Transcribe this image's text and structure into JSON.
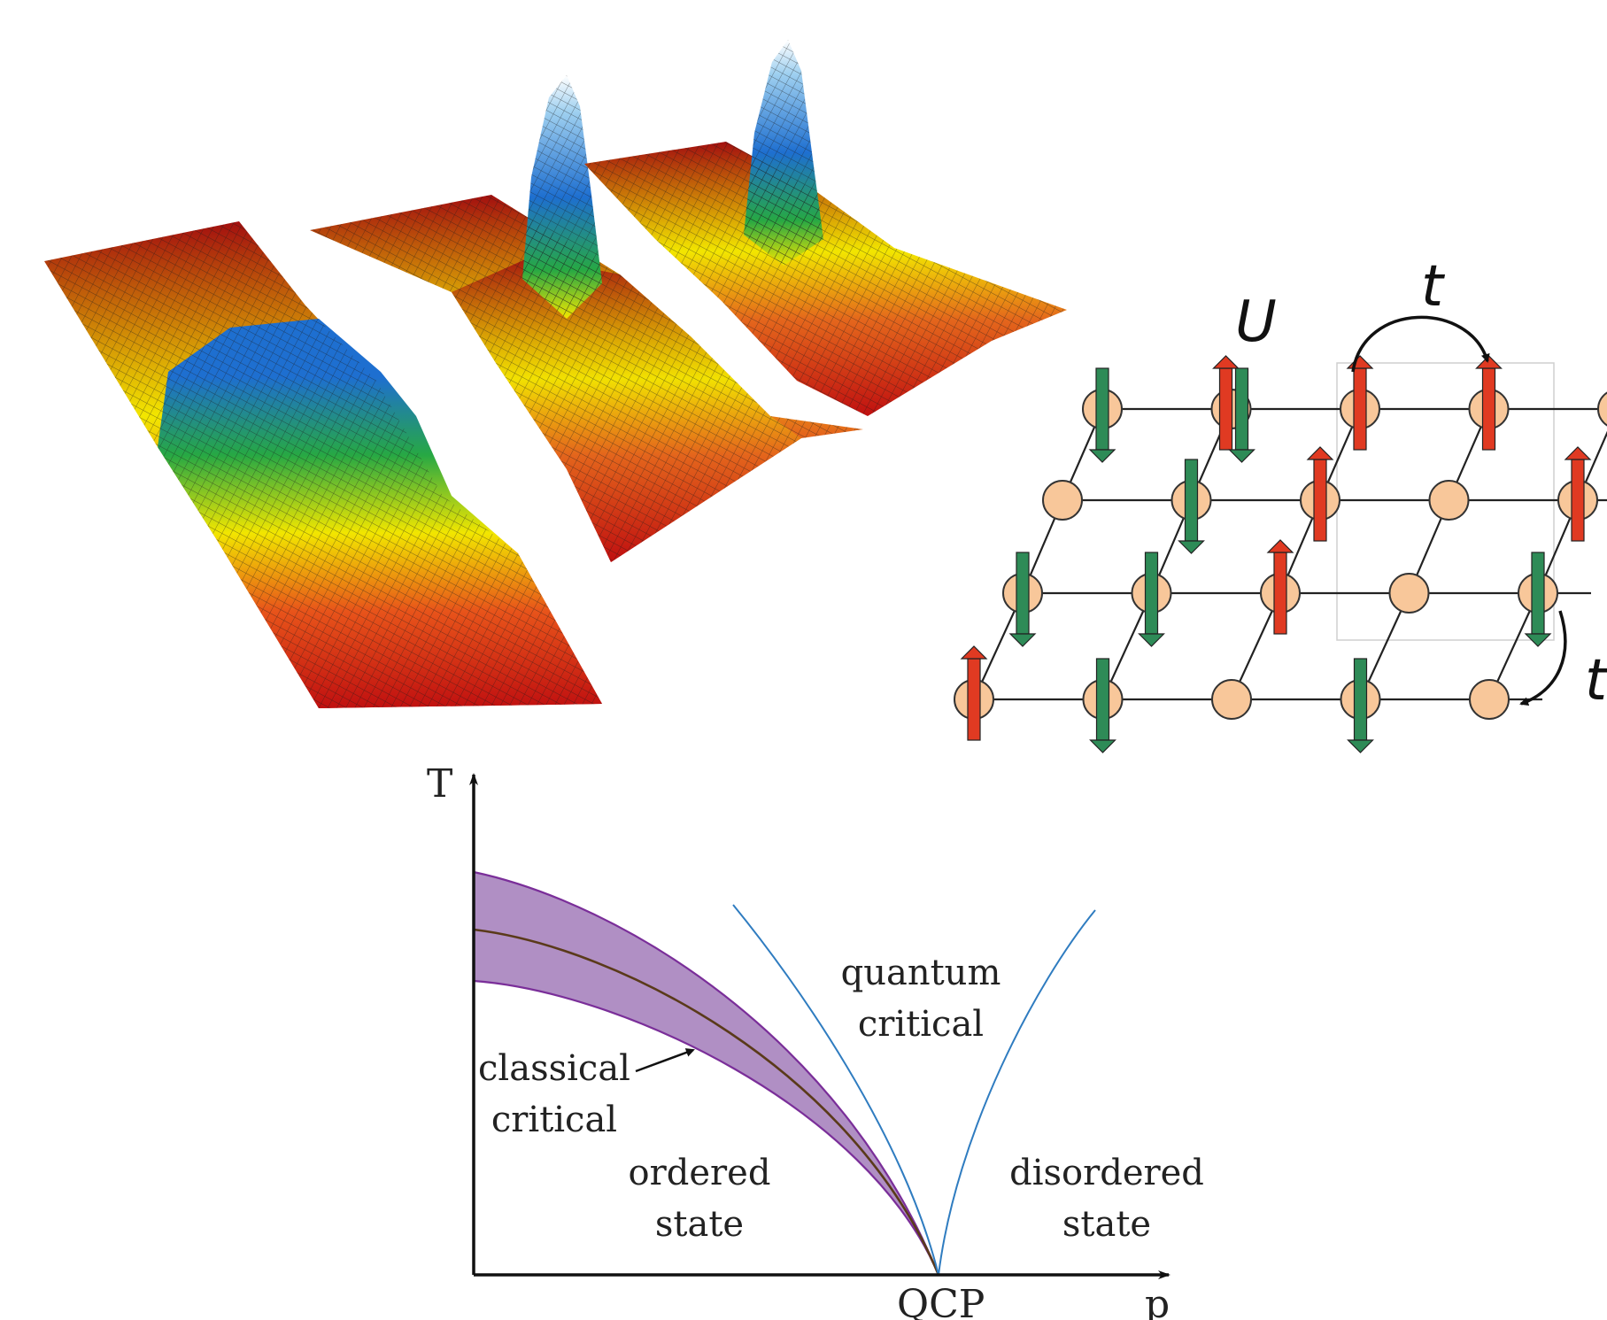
{
  "hubbard": {
    "labels": {
      "interaction": "U",
      "hopping": "t",
      "hopping2": "t"
    },
    "colors": {
      "site": "#f8c79a",
      "up_spin": "#e03a22",
      "down_spin": "#2e8b57"
    }
  },
  "surface_plots": {
    "count": 3,
    "colors": {
      "low": "#c01010",
      "mid_low": "#f2e600",
      "mid": "#27a844",
      "high": "#1e6fd0",
      "peak": "#ffffff"
    }
  },
  "phase_diagram": {
    "y_axis_label": "T",
    "x_axis_label": "p",
    "qcp_label": "QCP",
    "regions": {
      "quantum_critical_line1": "quantum",
      "quantum_critical_line2": "critical",
      "classical_critical_line1": "classical",
      "classical_critical_line2": "critical",
      "ordered_line1": "ordered",
      "ordered_line2": "state",
      "disordered_line1": "disordered",
      "disordered_line2": "state"
    },
    "colors": {
      "band": "#b08fc4",
      "band_edge": "#7a2e99",
      "transition_line": "#5a3a1a",
      "crossover": "#2f7cc0"
    }
  }
}
